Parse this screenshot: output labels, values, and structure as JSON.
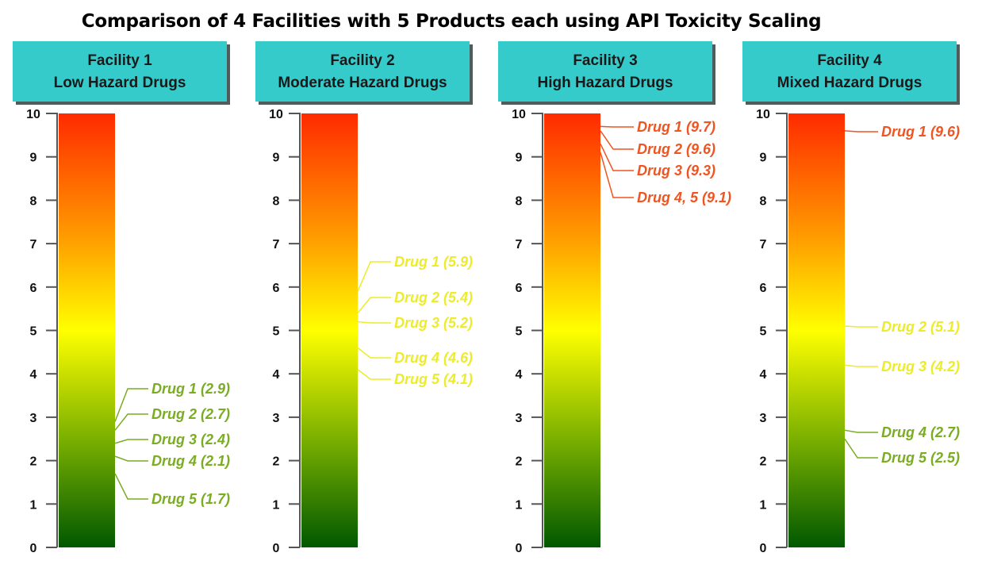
{
  "chart_data": {
    "type": "bar",
    "title": "Comparison of 4 Facilities with 5 Products each using API Toxicity Scaling",
    "ylim": [
      0,
      10
    ],
    "yticks": [
      "0",
      "1",
      "2",
      "3",
      "4",
      "5",
      "6",
      "7",
      "8",
      "9",
      "10"
    ],
    "colors": {
      "header_fill": "#36cbcb",
      "header_shadow": "#4d5c5c",
      "scale_top": "#ff2a00",
      "scale_mid_orange": "#ffa200",
      "scale_mid": "#ffff00",
      "scale_low": "#7ab000",
      "scale_bottom": "#005800",
      "label_green": "#7aac24",
      "label_yellow": "#ecec2c",
      "label_red": "#ee5522"
    },
    "facilities": [
      {
        "name": "Facility 1",
        "subtitle": "Low Hazard Drugs",
        "drugs": [
          {
            "label": "Drug 1 (2.9)",
            "value": 2.9,
            "color": "label_green"
          },
          {
            "label": "Drug 2 (2.7)",
            "value": 2.7,
            "color": "label_green"
          },
          {
            "label": "Drug 3 (2.4)",
            "value": 2.4,
            "color": "label_green"
          },
          {
            "label": "Drug 4 (2.1)",
            "value": 2.1,
            "color": "label_green"
          },
          {
            "label": "Drug 5 (1.7)",
            "value": 1.7,
            "color": "label_green"
          }
        ]
      },
      {
        "name": "Facility 2",
        "subtitle": "Moderate Hazard Drugs",
        "drugs": [
          {
            "label": "Drug 1 (5.9)",
            "value": 5.9,
            "color": "label_yellow"
          },
          {
            "label": "Drug 2 (5.4)",
            "value": 5.4,
            "color": "label_yellow"
          },
          {
            "label": "Drug 3 (5.2)",
            "value": 5.2,
            "color": "label_yellow"
          },
          {
            "label": "Drug 4 (4.6)",
            "value": 4.6,
            "color": "label_yellow"
          },
          {
            "label": "Drug 5 (4.1)",
            "value": 4.1,
            "color": "label_yellow"
          }
        ]
      },
      {
        "name": "Facility 3",
        "subtitle": "High Hazard Drugs",
        "drugs": [
          {
            "label": "Drug 1 (9.7)",
            "value": 9.7,
            "color": "label_red"
          },
          {
            "label": "Drug 2 (9.6)",
            "value": 9.6,
            "color": "label_red"
          },
          {
            "label": "Drug 3 (9.3)",
            "value": 9.3,
            "color": "label_red"
          },
          {
            "label": "Drug 4, 5 (9.1)",
            "value": 9.1,
            "color": "label_red"
          }
        ]
      },
      {
        "name": "Facility 4",
        "subtitle": "Mixed Hazard Drugs",
        "drugs": [
          {
            "label": "Drug 1 (9.6)",
            "value": 9.6,
            "color": "label_red"
          },
          {
            "label": "Drug 2 (5.1)",
            "value": 5.1,
            "color": "label_yellow"
          },
          {
            "label": "Drug 3 (4.2)",
            "value": 4.2,
            "color": "label_yellow"
          },
          {
            "label": "Drug 4 (2.7)",
            "value": 2.7,
            "color": "label_green"
          },
          {
            "label": "Drug 5 (2.5)",
            "value": 2.5,
            "color": "label_green"
          }
        ]
      }
    ]
  }
}
